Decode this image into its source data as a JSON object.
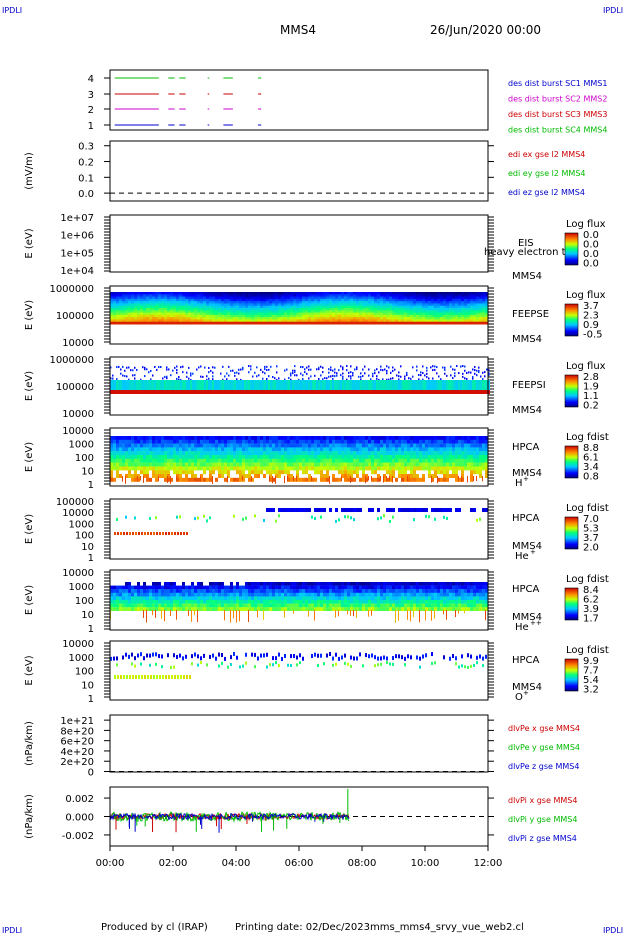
{
  "header": {
    "corner_left_top": "IPDLI",
    "corner_right_top": "IPDLI",
    "title": "MMS4",
    "date": "26/Jun/2020 00:00",
    "corner_left_bottom": "IPDLI",
    "corner_right_bottom": "IPDLI"
  },
  "footer": {
    "produced_by": "Produced by cl (IRAP)",
    "printing_date": "Printing date: 02/Dec/2023",
    "file": "mms_mms4_srvy_vue_web2.cl"
  },
  "chart_data": {
    "type": "line",
    "x_axis": {
      "ticks": [
        "00:00",
        "02:00",
        "04:00",
        "06:00",
        "08:00",
        "10:00",
        "12:00"
      ],
      "range_hours": [
        0,
        12
      ]
    },
    "panels": [
      {
        "kind": "burst",
        "ylabel": "",
        "yticks": [
          "4",
          "3",
          "2",
          "1"
        ],
        "series": [
          {
            "name": "des dist burst SC1 MMS1",
            "color": "#0000cc",
            "level": 1,
            "intervals_h": [
              [
                0.15,
                1.55
              ],
              [
                1.85,
                2.05
              ],
              [
                2.2,
                2.4
              ],
              [
                3.1,
                3.15
              ],
              [
                3.6,
                3.9
              ],
              [
                4.7,
                4.8
              ]
            ]
          },
          {
            "name": "des dist burst SC2 MMS2",
            "color": "#cc00cc",
            "level": 2,
            "intervals_h": [
              [
                0.15,
                1.55
              ],
              [
                1.85,
                2.05
              ],
              [
                2.2,
                2.4
              ],
              [
                3.1,
                3.15
              ],
              [
                3.6,
                3.9
              ],
              [
                4.7,
                4.8
              ]
            ]
          },
          {
            "name": "des dist burst SC3 MMS3",
            "color": "#cc0000",
            "level": 3,
            "intervals_h": [
              [
                0.15,
                1.55
              ],
              [
                1.85,
                2.05
              ],
              [
                2.2,
                2.4
              ],
              [
                3.1,
                3.15
              ],
              [
                3.6,
                3.9
              ],
              [
                4.7,
                4.8
              ]
            ]
          },
          {
            "name": "des dist burst SC4 MMS4",
            "color": "#00bb00",
            "level": 4,
            "intervals_h": [
              [
                0.15,
                1.55
              ],
              [
                1.85,
                2.05
              ],
              [
                2.2,
                2.4
              ],
              [
                3.1,
                3.15
              ],
              [
                3.6,
                3.9
              ],
              [
                4.7,
                4.8
              ]
            ]
          }
        ]
      },
      {
        "kind": "line",
        "ylabel": "(mV/m)",
        "ylim": [
          -0.05,
          0.33
        ],
        "yticks": [
          {
            "label": "0.3",
            "value": 0.3
          },
          {
            "label": "0.2",
            "value": 0.2
          },
          {
            "label": "0.1",
            "value": 0.1
          },
          {
            "label": "0.0",
            "value": 0.0
          }
        ],
        "zero_line": 0,
        "series": [
          {
            "name": "edi ex gse l2 MMS4",
            "color": "#cc0000"
          },
          {
            "name": "edi ey gse l2 MMS4",
            "color": "#00bb00"
          },
          {
            "name": "edi ez gse l2 MMS4",
            "color": "#0000cc"
          }
        ]
      },
      {
        "kind": "spectro",
        "ylabel": "E (eV)",
        "yticks": [
          "1e+07",
          "1e+06",
          "1e+05",
          "1e+04"
        ],
        "instrument": "EIS",
        "spacecraft": "MMS4",
        "overlay_text": "heavy electron to",
        "colorbar_title": "Log flux",
        "colorbar_ticks": [
          "0.0",
          "0.0",
          "0.0",
          "0.0"
        ],
        "empty": true
      },
      {
        "kind": "spectro",
        "ylabel": "E (eV)",
        "yticks": [
          "1000000",
          "100000",
          "10000"
        ],
        "instrument": "FEEPSE",
        "spacecraft": "MMS4",
        "colorbar_title": "Log flux",
        "colorbar_ticks": [
          "3.7",
          "2.3",
          "0.9",
          "-0.5"
        ],
        "style": "feepse"
      },
      {
        "kind": "spectro",
        "ylabel": "E (eV)",
        "yticks": [
          "1000000",
          "100000",
          "10000"
        ],
        "instrument": "FEEPSI",
        "spacecraft": "MMS4",
        "colorbar_title": "Log flux",
        "colorbar_ticks": [
          "2.8",
          "1.9",
          "1.1",
          "0.2"
        ],
        "style": "feepsi"
      },
      {
        "kind": "spectro",
        "ylabel": "E (eV)",
        "yticks": [
          "10000",
          "1000",
          "100",
          "10",
          "1"
        ],
        "instrument": "HPCA",
        "spacecraft": "MMS4",
        "species": "H",
        "species_charge": "+",
        "colorbar_title": "Log fdist",
        "colorbar_ticks": [
          "8.8",
          "6.1",
          "3.4",
          "0.8"
        ],
        "style": "hplus"
      },
      {
        "kind": "spectro",
        "ylabel": "E (eV)",
        "yticks": [
          "100000",
          "10000",
          "1000",
          "100",
          "10",
          "1"
        ],
        "instrument": "HPCA",
        "spacecraft": "MMS4",
        "species": "He",
        "species_charge": "+",
        "colorbar_title": "Log fdist",
        "colorbar_ticks": [
          "7.0",
          "5.3",
          "3.7",
          "2.0"
        ],
        "style": "heplus"
      },
      {
        "kind": "spectro",
        "ylabel": "E (eV)",
        "yticks": [
          "10000",
          "1000",
          "100",
          "10",
          "1"
        ],
        "instrument": "HPCA",
        "spacecraft": "MMS4",
        "species": "He",
        "species_charge": "++",
        "colorbar_title": "Log fdist",
        "colorbar_ticks": [
          "8.4",
          "6.2",
          "3.9",
          "1.7"
        ],
        "style": "heplusplus"
      },
      {
        "kind": "spectro",
        "ylabel": "E (eV)",
        "yticks": [
          "10000",
          "1000",
          "100",
          "10",
          "1"
        ],
        "instrument": "HPCA",
        "spacecraft": "MMS4",
        "species": "O",
        "species_charge": "+",
        "colorbar_title": "Log fdist",
        "colorbar_ticks": [
          "9.9",
          "7.7",
          "5.4",
          "3.2"
        ],
        "style": "oplus"
      },
      {
        "kind": "line",
        "ylabel": "(nPa/km)",
        "ylim": [
          -1e+19,
          1.1e+21
        ],
        "yticks": [
          {
            "label": "1e+21",
            "value": 1e+21
          },
          {
            "label": "8e+20",
            "value": 8e+20
          },
          {
            "label": "6e+20",
            "value": 6e+20
          },
          {
            "label": "4e+20",
            "value": 4e+20
          },
          {
            "label": "2e+20",
            "value": 2e+20
          },
          {
            "label": "0",
            "value": 0
          }
        ],
        "zero_line": 0,
        "series": [
          {
            "name": "dlvPe x gse MMS4",
            "color": "#cc0000"
          },
          {
            "name": "dlvPe y gse MMS4",
            "color": "#00bb00"
          },
          {
            "name": "dlvPe z gse MMS4",
            "color": "#0000cc"
          }
        ]
      },
      {
        "kind": "line",
        "ylabel": "(nPa/km)",
        "ylim": [
          -0.0032,
          0.0032
        ],
        "yticks": [
          {
            "label": "0.002",
            "value": 0.002
          },
          {
            "label": "0.000",
            "value": 0.0
          },
          {
            "label": "-0.002",
            "value": -0.002
          }
        ],
        "zero_line": 0,
        "data_end_h": 7.6,
        "spike_h": 7.55,
        "spike_value": 0.003,
        "series": [
          {
            "name": "dlvPi x gse MMS4",
            "color": "#cc0000"
          },
          {
            "name": "dlvPi y gse MMS4",
            "color": "#00bb00"
          },
          {
            "name": "dlvPi z gse MMS4",
            "color": "#0000cc"
          }
        ]
      }
    ]
  }
}
